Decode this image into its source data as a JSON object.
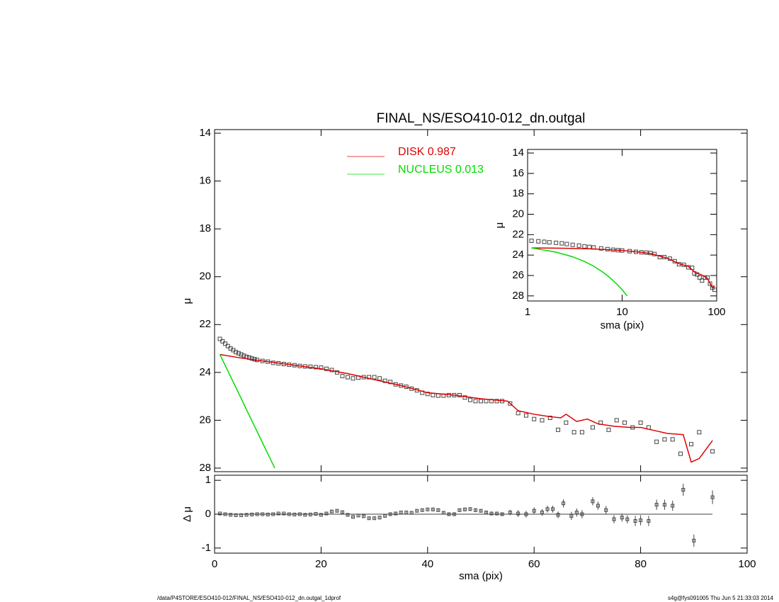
{
  "chart_data": [
    {
      "type": "line",
      "title": "FINAL_NS/ESO410-012_dn.outgal",
      "ylabel": "μ",
      "xlim": [
        0,
        100
      ],
      "xticks": [
        0,
        20,
        40,
        60,
        80,
        100
      ],
      "ylim": [
        13.85,
        28.15
      ],
      "yticks": [
        14,
        16,
        18,
        20,
        22,
        24,
        26,
        28
      ],
      "yinvert": true,
      "legend": "upper center",
      "series": [
        {
          "color": "#444444",
          "marker": "square",
          "x": [
            1,
            1.5,
            2,
            2.5,
            3,
            3.5,
            4,
            4.5,
            5,
            5.5,
            6,
            6.5,
            7,
            7.5,
            8,
            9,
            10,
            11,
            12,
            13,
            14,
            15,
            16,
            17,
            18,
            19,
            20,
            21,
            22,
            23,
            24,
            25,
            26,
            27,
            28,
            29,
            30,
            31,
            32,
            33,
            34,
            35,
            36,
            37,
            38,
            39,
            40,
            41,
            42,
            43,
            44,
            45,
            46,
            47,
            48,
            49,
            50,
            51,
            52,
            53,
            54,
            55.5,
            57,
            58.5,
            60,
            61.5,
            63,
            64.5,
            66,
            67.5,
            69,
            71,
            72.5,
            74,
            75.5,
            77,
            78.5,
            80,
            81.5,
            83,
            84.5,
            86,
            87.5,
            89.5,
            91,
            93.5
          ],
          "values": [
            22.6,
            22.7,
            22.8,
            22.9,
            23.0,
            23.07,
            23.15,
            23.2,
            23.25,
            23.3,
            23.35,
            23.38,
            23.42,
            23.45,
            23.48,
            23.52,
            23.55,
            23.6,
            23.62,
            23.65,
            23.68,
            23.7,
            23.73,
            23.75,
            23.76,
            23.78,
            23.8,
            23.85,
            23.9,
            24.0,
            24.15,
            24.2,
            24.25,
            24.22,
            24.2,
            24.2,
            24.2,
            24.25,
            24.35,
            24.4,
            24.5,
            24.55,
            24.6,
            24.68,
            24.75,
            24.85,
            24.9,
            24.95,
            24.97,
            24.97,
            24.95,
            24.95,
            24.95,
            25.05,
            25.15,
            25.2,
            25.2,
            25.2,
            25.2,
            25.2,
            25.2,
            25.3,
            25.7,
            25.8,
            25.95,
            26.0,
            25.9,
            26.4,
            26.1,
            26.5,
            26.5,
            26.3,
            26.1,
            26.4,
            26.0,
            26.1,
            26.3,
            26.1,
            26.3,
            26.9,
            26.8,
            26.8,
            27.4,
            27.0,
            26.5,
            27.3
          ]
        },
        {
          "name": "DISK  0.987",
          "color": "#e00000",
          "x": [
            1,
            5,
            10,
            15,
            20,
            25,
            30,
            35,
            40,
            45,
            50,
            55,
            57,
            60,
            63,
            65,
            66,
            68,
            70,
            72,
            75,
            78,
            80,
            83,
            85,
            88,
            89.5,
            91,
            93.5
          ],
          "values": [
            23.25,
            23.4,
            23.55,
            23.7,
            23.85,
            24.05,
            24.3,
            24.55,
            24.85,
            24.95,
            25.1,
            25.2,
            25.6,
            25.75,
            25.85,
            25.9,
            25.75,
            26.05,
            25.95,
            26.15,
            26.25,
            26.3,
            26.3,
            26.45,
            26.55,
            26.6,
            27.75,
            27.6,
            26.85
          ]
        },
        {
          "name": "NUCLEUS  0.013",
          "color": "#00dd00",
          "x": [
            1,
            2,
            3,
            4,
            5,
            6,
            7,
            8,
            9,
            10,
            11.3
          ],
          "values": [
            23.25,
            23.71,
            24.17,
            24.63,
            25.09,
            25.56,
            26.02,
            26.48,
            26.94,
            27.4,
            28.0
          ]
        }
      ]
    },
    {
      "type": "errorbar",
      "xlabel": "sma (pix)",
      "ylabel": "Δ μ",
      "xlim": [
        0,
        100
      ],
      "xticks": [
        0,
        20,
        40,
        60,
        80,
        100
      ],
      "ylim": [
        -1.15,
        1.15
      ],
      "yticks": [
        1,
        0,
        -1
      ],
      "color": "#444444",
      "x": [
        1,
        2,
        3,
        4,
        5,
        6,
        7,
        8,
        9,
        10,
        11,
        12,
        13,
        14,
        15,
        16,
        17,
        18,
        19,
        20,
        21,
        22,
        23,
        24,
        25,
        26,
        27,
        28,
        29,
        30,
        31,
        32,
        33,
        34,
        35,
        36,
        37,
        38,
        39,
        40,
        41,
        42,
        43,
        44,
        45,
        46,
        47,
        48,
        49,
        50,
        51,
        52,
        53,
        54,
        55.5,
        57,
        58.5,
        60,
        61.5,
        62.5,
        63.5,
        64.5,
        65.5,
        67,
        68,
        69,
        71,
        72,
        73.5,
        75,
        76.5,
        77.5,
        79,
        80,
        81.5,
        83,
        84.5,
        86,
        88,
        90,
        93.5
      ],
      "values": [
        0.02,
        0.0,
        -0.02,
        -0.03,
        -0.03,
        -0.02,
        -0.01,
        0.0,
        0.0,
        -0.01,
        0.0,
        0.02,
        0.02,
        0.0,
        -0.01,
        0.0,
        -0.02,
        -0.01,
        0.01,
        -0.02,
        0.02,
        0.08,
        0.1,
        0.06,
        -0.02,
        -0.08,
        -0.04,
        -0.06,
        -0.12,
        -0.12,
        -0.1,
        -0.05,
        0.0,
        0.02,
        0.05,
        0.05,
        0.04,
        0.1,
        0.12,
        0.14,
        0.14,
        0.12,
        0.04,
        0.0,
        0.0,
        0.12,
        0.14,
        0.15,
        0.12,
        0.1,
        0.05,
        0.02,
        0.02,
        0.0,
        0.05,
        0.02,
        0.0,
        0.1,
        0.05,
        0.15,
        0.15,
        -0.02,
        0.32,
        -0.05,
        0.05,
        0.0,
        0.38,
        0.25,
        0.12,
        -0.15,
        -0.1,
        -0.15,
        -0.2,
        -0.18,
        -0.2,
        0.28,
        0.28,
        0.25,
        0.72,
        -0.78,
        0.5
      ],
      "errors": [
        0.02,
        0.02,
        0.02,
        0.02,
        0.02,
        0.02,
        0.02,
        0.02,
        0.02,
        0.02,
        0.02,
        0.02,
        0.02,
        0.02,
        0.02,
        0.02,
        0.02,
        0.02,
        0.02,
        0.02,
        0.03,
        0.03,
        0.03,
        0.03,
        0.03,
        0.03,
        0.03,
        0.03,
        0.03,
        0.03,
        0.03,
        0.03,
        0.03,
        0.03,
        0.03,
        0.03,
        0.03,
        0.03,
        0.03,
        0.03,
        0.05,
        0.05,
        0.05,
        0.05,
        0.05,
        0.05,
        0.05,
        0.05,
        0.05,
        0.05,
        0.05,
        0.05,
        0.05,
        0.05,
        0.08,
        0.1,
        0.1,
        0.1,
        0.1,
        0.1,
        0.1,
        0.1,
        0.12,
        0.12,
        0.12,
        0.12,
        0.12,
        0.12,
        0.12,
        0.12,
        0.12,
        0.12,
        0.15,
        0.15,
        0.15,
        0.15,
        0.15,
        0.15,
        0.18,
        0.18,
        0.2
      ]
    },
    {
      "type": "line",
      "xlabel": "sma (pix)",
      "ylabel": "μ",
      "xlog": true,
      "xlim": [
        1,
        100
      ],
      "xticks": [
        1,
        10,
        100
      ],
      "ylim": [
        13.65,
        28.5
      ],
      "yticks": [
        14,
        16,
        18,
        20,
        22,
        24,
        26,
        28
      ],
      "yinvert": true,
      "series": [
        {
          "color": "#444444",
          "marker": "square",
          "x": [
            1.1,
            1.3,
            1.5,
            1.7,
            2,
            2.3,
            2.6,
            3,
            3.5,
            4,
            4.5,
            5,
            6,
            7,
            8,
            9,
            10,
            12,
            14,
            16,
            18,
            20,
            22,
            25,
            28,
            32,
            36,
            40,
            45,
            50,
            55,
            58,
            62,
            66,
            70,
            75,
            80,
            85,
            90,
            95
          ],
          "values": [
            22.6,
            22.65,
            22.7,
            22.75,
            22.8,
            22.85,
            22.92,
            23.0,
            23.07,
            23.15,
            23.2,
            23.25,
            23.35,
            23.42,
            23.48,
            23.52,
            23.55,
            23.62,
            23.68,
            23.73,
            23.76,
            23.8,
            23.9,
            24.2,
            24.2,
            24.35,
            24.6,
            24.9,
            24.95,
            25.2,
            25.25,
            25.8,
            25.9,
            26.2,
            26.5,
            26.2,
            26.2,
            26.8,
            27.2,
            27.4
          ]
        },
        {
          "color": "#e00000",
          "x": [
            1.1,
            2,
            3,
            5,
            10,
            15,
            20,
            30,
            40,
            50,
            60,
            70,
            80,
            90,
            95
          ],
          "values": [
            23.3,
            23.32,
            23.35,
            23.4,
            23.55,
            23.7,
            23.85,
            24.3,
            24.85,
            25.1,
            25.75,
            25.95,
            26.3,
            27.2,
            27.0
          ]
        },
        {
          "color": "#00dd00",
          "x": [
            1.1,
            2,
            3,
            4,
            5,
            6,
            7,
            8,
            9,
            10,
            11.3
          ],
          "values": [
            23.3,
            23.71,
            24.17,
            24.63,
            25.09,
            25.56,
            26.02,
            26.48,
            26.94,
            27.4,
            28.0
          ]
        }
      ]
    }
  ],
  "footer": {
    "left": "/data/P4STORE/ESO410-012/FINAL_NS/ESO410-012_dn.outgal_1dprof",
    "right": "s4g@fys091005  Thu Jun  5 21:33:03 2014"
  }
}
